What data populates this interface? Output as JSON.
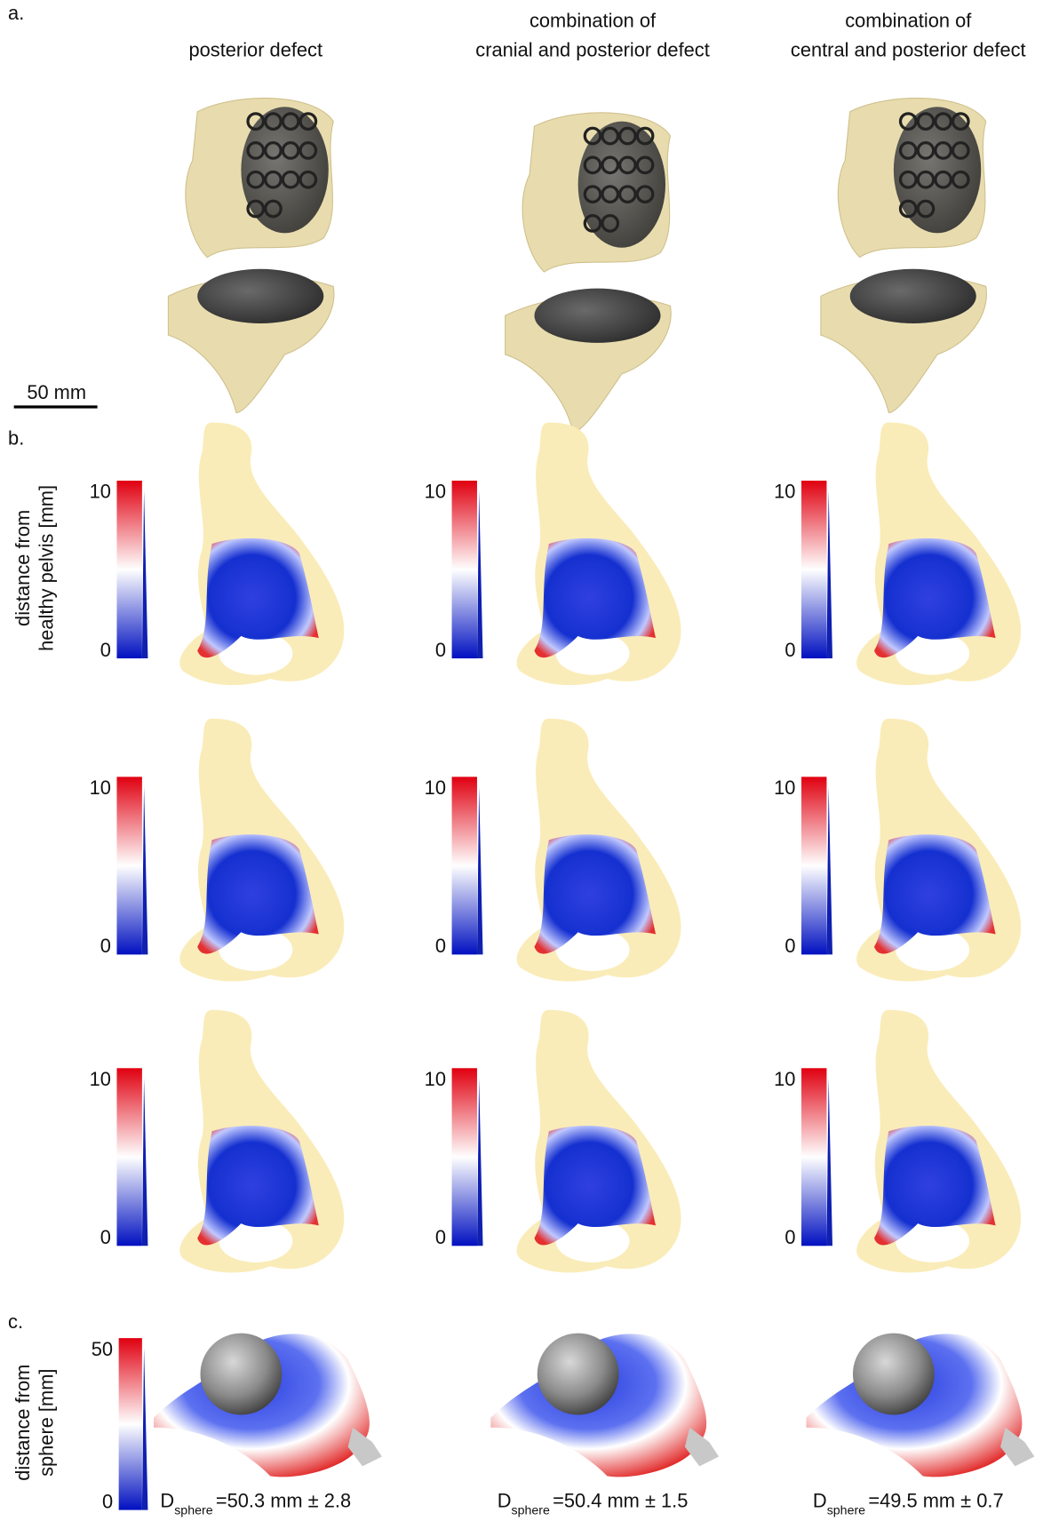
{
  "panel_a": {
    "label": "a.",
    "columns": [
      {
        "lines": [
          "posterior defect"
        ]
      },
      {
        "lines": [
          "combination of",
          "cranial and posterior defect"
        ]
      },
      {
        "lines": [
          "combination of",
          "central and posterior defect"
        ]
      }
    ],
    "scale_bar": "50 mm"
  },
  "panel_b": {
    "label": "b.",
    "axis_title": [
      "distance from",
      "healthy pelvis [mm]"
    ],
    "colorbar_max": 10,
    "colorbar_min": 0
  },
  "panel_c": {
    "label": "c.",
    "axis_title": [
      "distance from",
      "sphere [mm]"
    ],
    "colorbar_max": 50,
    "colorbar_min": 0,
    "sphere_diameters": [
      {
        "symbol": "D",
        "subscript": "sphere",
        "text": "=50.3 mm ± 2.8"
      },
      {
        "symbol": "D",
        "subscript": "sphere",
        "text": "=50.4 mm ± 1.5"
      },
      {
        "symbol": "D",
        "subscript": "sphere",
        "text": "=49.5 mm ± 0.7"
      }
    ]
  }
}
